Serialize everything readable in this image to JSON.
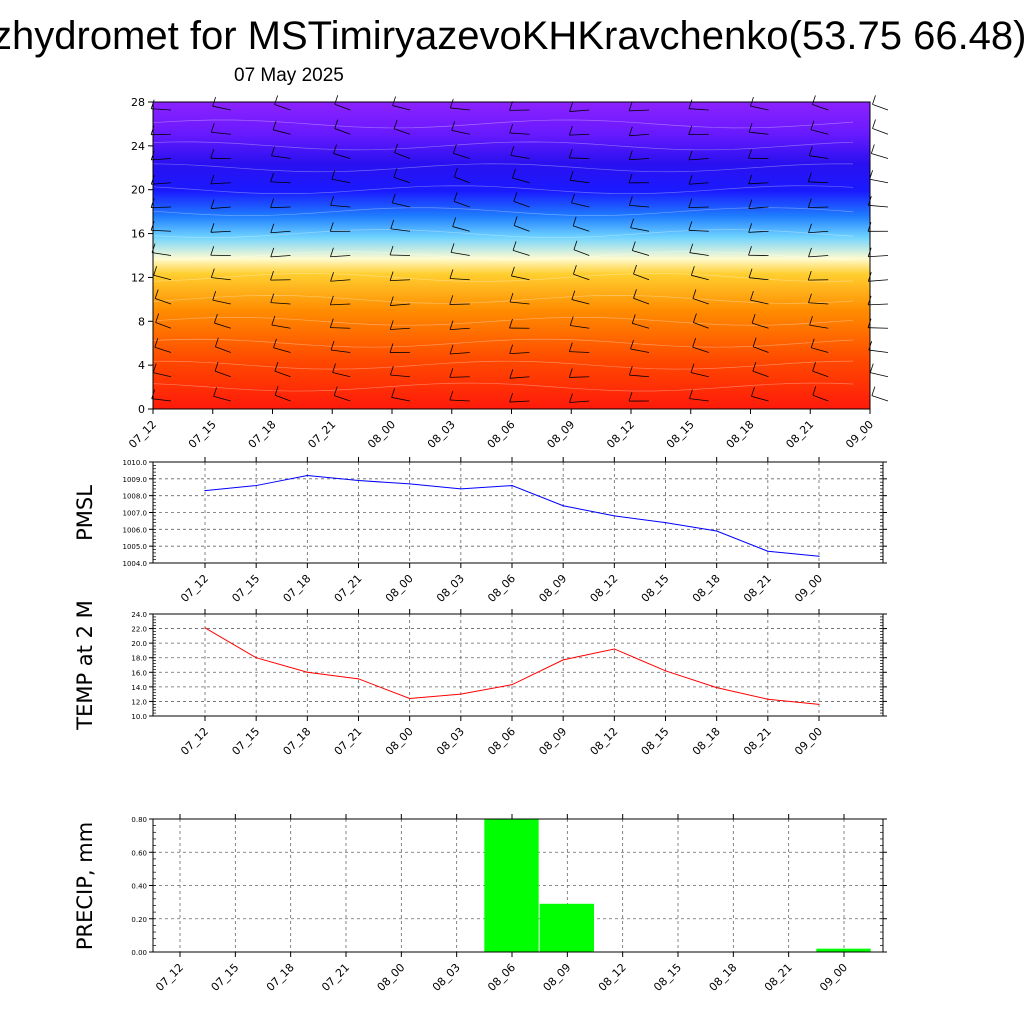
{
  "header": {
    "title": "zhydromet for MSTimiryazevoKHKravchenko(53.75 66.48)",
    "date": "07 May 2025"
  },
  "time_labels": [
    "07_12",
    "07_15",
    "07_18",
    "07_21",
    "08_00",
    "08_03",
    "08_06",
    "08_09",
    "08_12",
    "08_15",
    "08_18",
    "08_21",
    "09_00"
  ],
  "chart_data": [
    {
      "type": "heatmap",
      "name": "",
      "x": [
        "07_12",
        "07_15",
        "07_18",
        "07_21",
        "08_00",
        "08_03",
        "08_06",
        "08_09",
        "08_12",
        "08_15",
        "08_18",
        "08_21",
        "09_00"
      ],
      "ylim": [
        0,
        28
      ],
      "yticks": [
        "0",
        "4",
        "8",
        "12",
        "16",
        "20",
        "24",
        "28"
      ],
      "colormap": [
        "#ff1a0a",
        "#ff6a00",
        "#ffb000",
        "#fff7b0",
        "#52c8ff",
        "#1a1aff",
        "#7a1aff"
      ],
      "wind_barbs": true
    },
    {
      "type": "line",
      "ylabel": "PMSL",
      "x": [
        "07_12",
        "07_15",
        "07_18",
        "07_21",
        "08_00",
        "08_03",
        "08_06",
        "08_09",
        "08_12",
        "08_15",
        "08_18",
        "08_21",
        "09_00"
      ],
      "values": [
        1008.3,
        1008.6,
        1009.2,
        1008.9,
        1008.7,
        1008.4,
        1008.6,
        1007.4,
        1006.8,
        1006.4,
        1005.9,
        1004.7,
        1004.4
      ],
      "ylim": [
        1004.0,
        1010.0
      ],
      "yticks": [
        "1004.0",
        "1005.0",
        "1006.0",
        "1007.0",
        "1008.0",
        "1009.0",
        "1010.0"
      ],
      "color": "#0000ff",
      "grid": true
    },
    {
      "type": "line",
      "ylabel": "TEMP at 2 M",
      "x": [
        "07_12",
        "07_15",
        "07_18",
        "07_21",
        "08_00",
        "08_03",
        "08_06",
        "08_09",
        "08_12",
        "08_15",
        "08_18",
        "08_21",
        "09_00"
      ],
      "values": [
        22.1,
        18.0,
        16.0,
        15.1,
        12.4,
        13.0,
        14.3,
        17.7,
        19.2,
        16.2,
        13.9,
        12.3,
        11.6
      ],
      "ylim": [
        10.0,
        24.0
      ],
      "yticks": [
        "10.0",
        "12.0",
        "14.0",
        "16.0",
        "18.0",
        "20.0",
        "22.0",
        "24.0"
      ],
      "color": "#ff0000",
      "grid": true
    },
    {
      "type": "bar",
      "ylabel": "PRECIP, mm",
      "x": [
        "07_12",
        "07_15",
        "07_18",
        "07_21",
        "08_00",
        "08_03",
        "08_06",
        "08_09",
        "08_12",
        "08_15",
        "08_18",
        "08_21",
        "09_00"
      ],
      "values": [
        0,
        0,
        0,
        0,
        0,
        0,
        0.8,
        0.29,
        0,
        0,
        0,
        0,
        0.02
      ],
      "ylim": [
        0,
        0.8
      ],
      "yticks": [
        "0.00",
        "0.20",
        "0.40",
        "0.60",
        "0.80"
      ],
      "color": "#00ff00",
      "grid": true
    }
  ]
}
